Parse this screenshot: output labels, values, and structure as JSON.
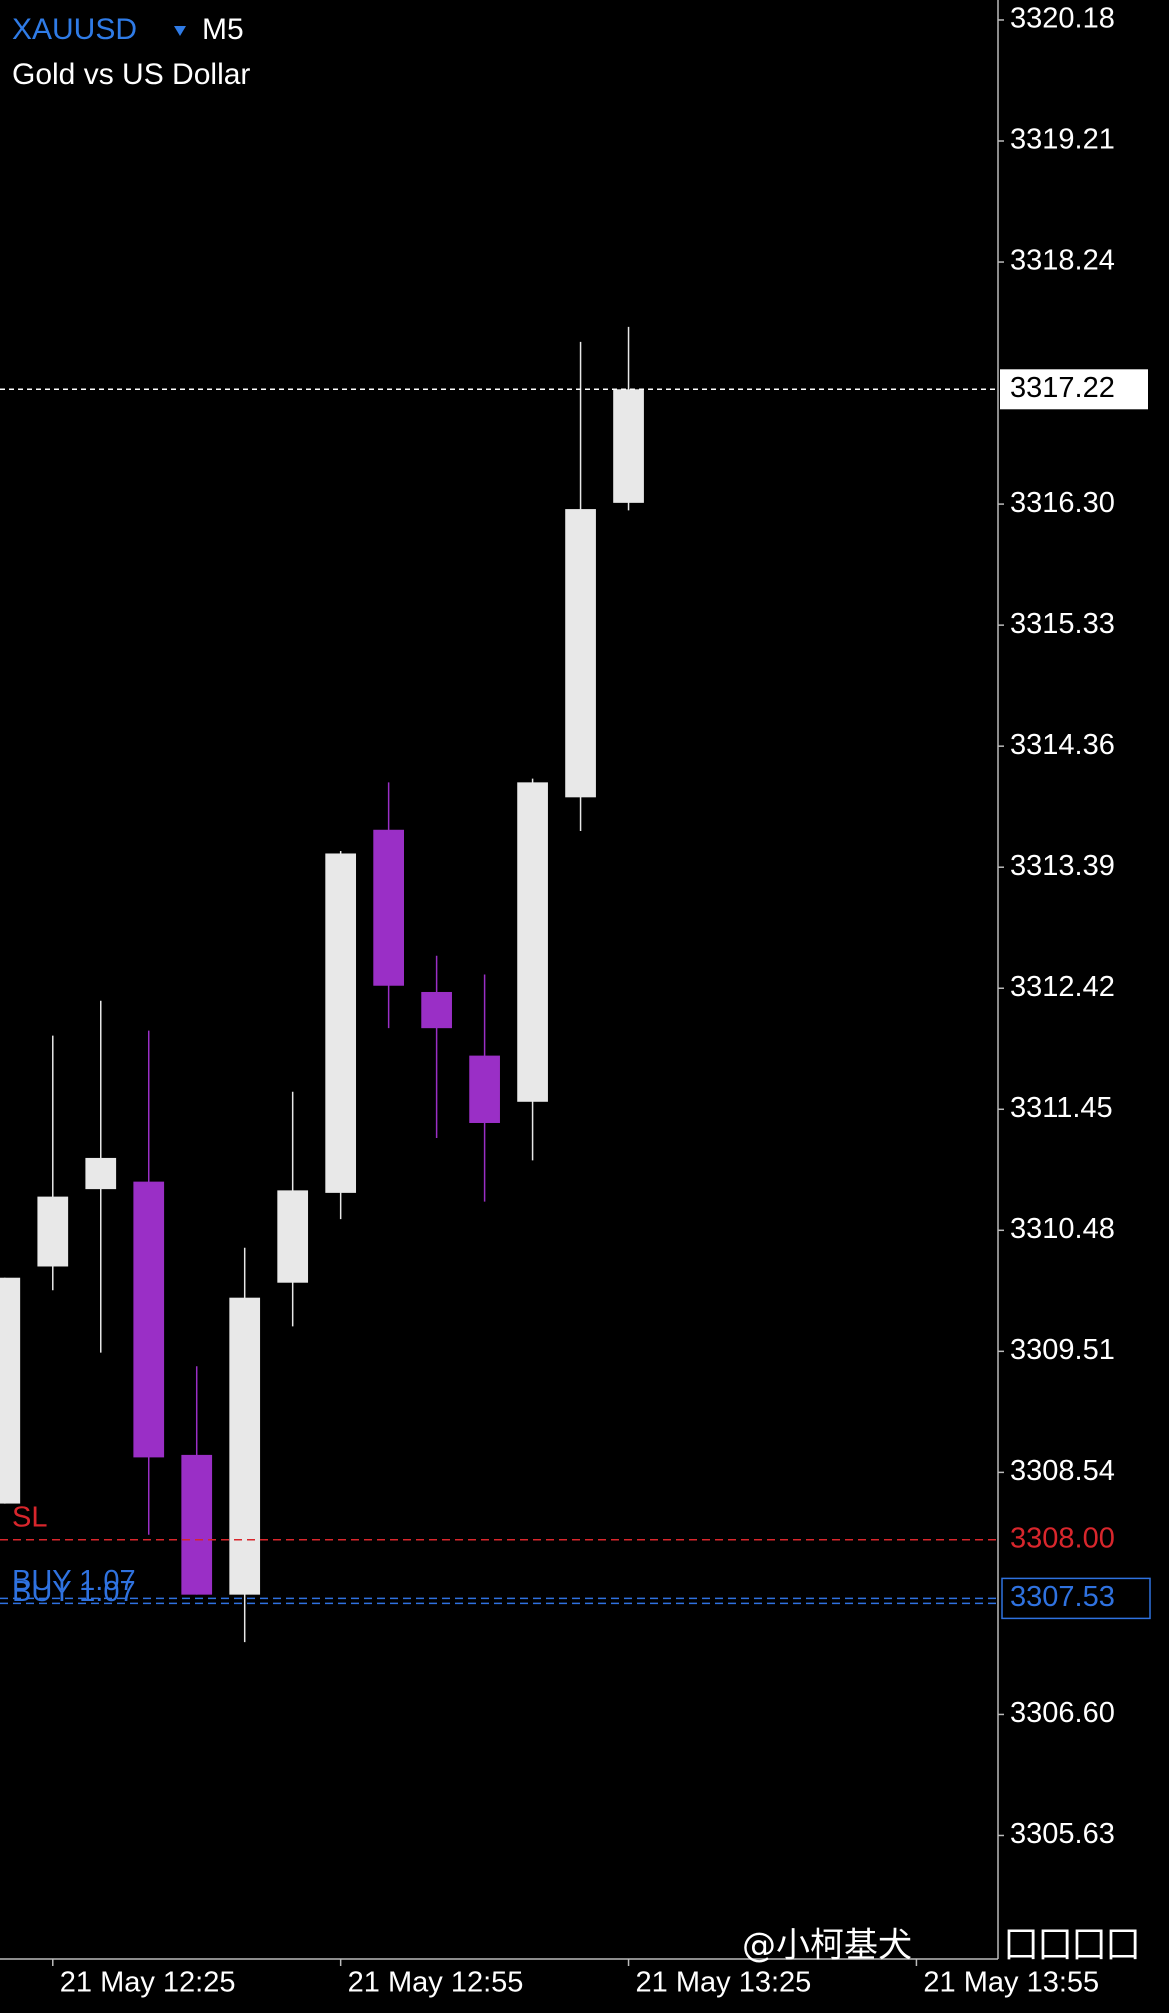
{
  "chart_data": {
    "type": "candlestick",
    "title": "XAUUSD",
    "timeframe": "M5",
    "subtitle": "Gold vs US Dollar",
    "candles": [
      {
        "open": 3308.29,
        "high": 3310.1,
        "low": 3308.29,
        "close": 3310.1
      },
      {
        "open": 3310.19,
        "high": 3312.04,
        "low": 3310.0,
        "close": 3310.75
      },
      {
        "open": 3310.81,
        "high": 3312.32,
        "low": 3309.5,
        "close": 3311.06
      },
      {
        "open": 3310.87,
        "high": 3312.08,
        "low": 3308.04,
        "close": 3308.66
      },
      {
        "open": 3308.68,
        "high": 3309.39,
        "low": 3307.56,
        "close": 3307.56
      },
      {
        "open": 3307.56,
        "high": 3310.34,
        "low": 3307.18,
        "close": 3309.94
      },
      {
        "open": 3310.06,
        "high": 3311.59,
        "low": 3309.71,
        "close": 3310.8
      },
      {
        "open": 3310.78,
        "high": 3313.52,
        "low": 3310.57,
        "close": 3313.5
      },
      {
        "open": 3313.69,
        "high": 3314.07,
        "low": 3312.1,
        "close": 3312.44
      },
      {
        "open": 3312.39,
        "high": 3312.68,
        "low": 3311.22,
        "close": 3312.1
      },
      {
        "open": 3311.88,
        "high": 3312.53,
        "low": 3310.71,
        "close": 3311.34
      },
      {
        "open": 3311.51,
        "high": 3314.1,
        "low": 3311.04,
        "close": 3314.07
      },
      {
        "open": 3313.95,
        "high": 3317.6,
        "low": 3313.68,
        "close": 3316.26
      },
      {
        "open": 3316.31,
        "high": 3317.72,
        "low": 3316.25,
        "close": 3317.22
      }
    ],
    "bull_color": "#e8e8e8",
    "bear_color": "#9a2fc6",
    "xlim": [
      -0.1,
      20.7
    ],
    "xticks": [
      {
        "value": 1,
        "label": "21 May 12:25"
      },
      {
        "value": 7,
        "label": "21 May 12:55"
      },
      {
        "value": 13,
        "label": "21 May 13:25"
      },
      {
        "value": 19,
        "label": "21 May 13:55"
      }
    ],
    "ylim": [
      3304.64,
      3320.34
    ],
    "yticks": [
      3320.18,
      3319.21,
      3318.24,
      {
        "value": 3316.3,
        "label": "3316.30"
      },
      3315.33,
      3314.36,
      3313.39,
      3312.42,
      3311.45,
      3310.48,
      3309.51,
      3308.54,
      {
        "value": 3306.6,
        "label": "3306.60"
      },
      3305.63
    ],
    "current_price": 3317.22,
    "stop_loss": {
      "label": "SL",
      "price": {
        "value": 3308,
        "label": "3308.00"
      },
      "color": "#d8262c"
    },
    "orders": [
      {
        "label": "BUY 1.07",
        "price": 3307.53
      },
      {
        "label": "BUY 1.07",
        "price": 3307.49
      }
    ],
    "order_color": "#2f72e0",
    "watermark": "@小柯基犬",
    "watermark_suffix": "囗囗囗囗"
  }
}
